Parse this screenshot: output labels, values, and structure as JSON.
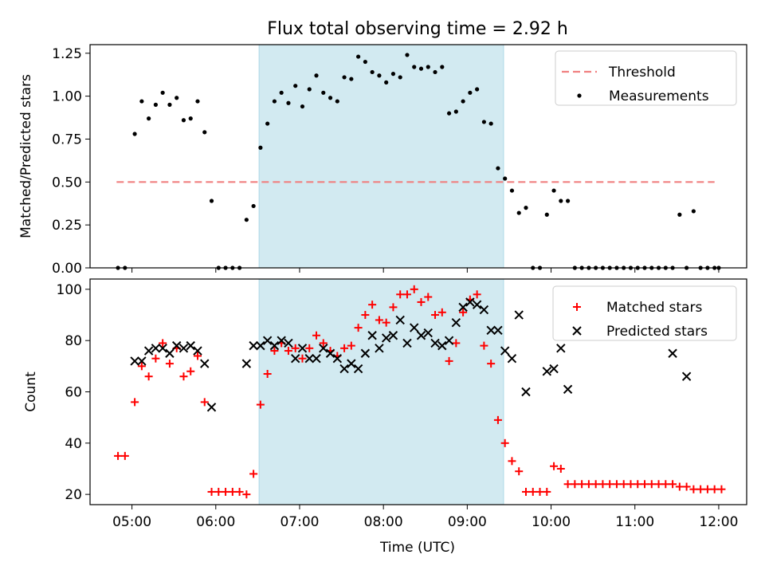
{
  "figure": {
    "title": "Flux total observing time = 2.92 h",
    "xlabel": "Time (UTC)",
    "xticks": [
      "05:00",
      "06:00",
      "07:00",
      "08:00",
      "09:00",
      "10:00",
      "11:00",
      "12:00"
    ],
    "observing_window": {
      "start": "06:31",
      "end": "09:26",
      "color": "#add8e6"
    }
  },
  "chart_data": [
    {
      "type": "scatter",
      "title": "Flux total observing time = 2.92 h",
      "xlabel": "",
      "ylabel": "Matched/Predicted stars",
      "xlim": [
        "04:30",
        "12:20"
      ],
      "ylim": [
        0,
        1.3
      ],
      "yticks": [
        "0.00",
        "0.25",
        "0.50",
        "0.75",
        "1.00",
        "1.25"
      ],
      "legend_position": "top-right",
      "series": [
        {
          "name": "Threshold",
          "kind": "line",
          "style": "dashed",
          "color": "#f08080",
          "points": [
            [
              "04:49",
              0.5
            ],
            [
              "11:57",
              0.5
            ]
          ]
        },
        {
          "name": "Measurements",
          "kind": "scatter",
          "marker": "dot",
          "color": "#000000",
          "points": [
            [
              "04:50",
              0.0
            ],
            [
              "04:55",
              0.0
            ],
            [
              "05:02",
              0.78
            ],
            [
              "05:07",
              0.97
            ],
            [
              "05:12",
              0.87
            ],
            [
              "05:17",
              0.95
            ],
            [
              "05:22",
              1.02
            ],
            [
              "05:27",
              0.95
            ],
            [
              "05:32",
              0.99
            ],
            [
              "05:37",
              0.86
            ],
            [
              "05:42",
              0.87
            ],
            [
              "05:47",
              0.97
            ],
            [
              "05:52",
              0.79
            ],
            [
              "05:57",
              0.39
            ],
            [
              "06:02",
              0.0
            ],
            [
              "06:07",
              0.0
            ],
            [
              "06:12",
              0.0
            ],
            [
              "06:17",
              0.0
            ],
            [
              "06:22",
              0.28
            ],
            [
              "06:27",
              0.36
            ],
            [
              "06:32",
              0.7
            ],
            [
              "06:37",
              0.84
            ],
            [
              "06:42",
              0.97
            ],
            [
              "06:47",
              1.02
            ],
            [
              "06:52",
              0.96
            ],
            [
              "06:57",
              1.06
            ],
            [
              "07:02",
              0.94
            ],
            [
              "07:07",
              1.04
            ],
            [
              "07:12",
              1.12
            ],
            [
              "07:17",
              1.02
            ],
            [
              "07:22",
              0.99
            ],
            [
              "07:27",
              0.97
            ],
            [
              "07:32",
              1.11
            ],
            [
              "07:37",
              1.1
            ],
            [
              "07:42",
              1.23
            ],
            [
              "07:47",
              1.2
            ],
            [
              "07:52",
              1.14
            ],
            [
              "07:57",
              1.12
            ],
            [
              "08:02",
              1.08
            ],
            [
              "08:07",
              1.13
            ],
            [
              "08:12",
              1.11
            ],
            [
              "08:17",
              1.24
            ],
            [
              "08:22",
              1.17
            ],
            [
              "08:27",
              1.16
            ],
            [
              "08:32",
              1.17
            ],
            [
              "08:37",
              1.14
            ],
            [
              "08:42",
              1.17
            ],
            [
              "08:47",
              0.9
            ],
            [
              "08:52",
              0.91
            ],
            [
              "08:57",
              0.97
            ],
            [
              "09:02",
              1.02
            ],
            [
              "09:07",
              1.04
            ],
            [
              "09:12",
              0.85
            ],
            [
              "09:17",
              0.84
            ],
            [
              "09:22",
              0.58
            ],
            [
              "09:27",
              0.52
            ],
            [
              "09:32",
              0.45
            ],
            [
              "09:37",
              0.32
            ],
            [
              "09:42",
              0.35
            ],
            [
              "09:47",
              0.0
            ],
            [
              "09:52",
              0.0
            ],
            [
              "09:57",
              0.31
            ],
            [
              "10:02",
              0.45
            ],
            [
              "10:07",
              0.39
            ],
            [
              "10:12",
              0.39
            ],
            [
              "10:17",
              0.0
            ],
            [
              "10:22",
              0.0
            ],
            [
              "10:27",
              0.0
            ],
            [
              "10:32",
              0.0
            ],
            [
              "10:37",
              0.0
            ],
            [
              "10:42",
              0.0
            ],
            [
              "10:47",
              0.0
            ],
            [
              "10:52",
              0.0
            ],
            [
              "10:57",
              0.0
            ],
            [
              "11:02",
              0.0
            ],
            [
              "11:07",
              0.0
            ],
            [
              "11:12",
              0.0
            ],
            [
              "11:17",
              0.0
            ],
            [
              "11:22",
              0.0
            ],
            [
              "11:27",
              0.0
            ],
            [
              "11:32",
              0.31
            ],
            [
              "11:37",
              0.0
            ],
            [
              "11:42",
              0.33
            ],
            [
              "11:47",
              0.0
            ],
            [
              "11:52",
              0.0
            ],
            [
              "11:57",
              0.0
            ],
            [
              "12:00",
              0.0
            ]
          ]
        }
      ]
    },
    {
      "type": "scatter",
      "title": "",
      "xlabel": "Time (UTC)",
      "ylabel": "Count",
      "xlim": [
        "04:30",
        "12:20"
      ],
      "ylim": [
        16,
        104
      ],
      "yticks": [
        "20",
        "40",
        "60",
        "80",
        "100"
      ],
      "legend_position": "top-right",
      "series": [
        {
          "name": "Matched stars",
          "marker": "plus",
          "color": "#ff0000",
          "points": [
            [
              "04:50",
              35
            ],
            [
              "04:55",
              35
            ],
            [
              "05:02",
              56
            ],
            [
              "05:07",
              70
            ],
            [
              "05:12",
              66
            ],
            [
              "05:17",
              73
            ],
            [
              "05:22",
              79
            ],
            [
              "05:27",
              71
            ],
            [
              "05:32",
              77
            ],
            [
              "05:37",
              66
            ],
            [
              "05:42",
              68
            ],
            [
              "05:47",
              74
            ],
            [
              "05:52",
              56
            ],
            [
              "05:57",
              21
            ],
            [
              "06:02",
              21
            ],
            [
              "06:07",
              21
            ],
            [
              "06:12",
              21
            ],
            [
              "06:17",
              21
            ],
            [
              "06:22",
              20
            ],
            [
              "06:27",
              28
            ],
            [
              "06:32",
              55
            ],
            [
              "06:37",
              67
            ],
            [
              "06:42",
              76
            ],
            [
              "06:47",
              79
            ],
            [
              "06:52",
              76
            ],
            [
              "06:57",
              77
            ],
            [
              "07:02",
              73
            ],
            [
              "07:07",
              77
            ],
            [
              "07:12",
              82
            ],
            [
              "07:17",
              79
            ],
            [
              "07:22",
              76
            ],
            [
              "07:27",
              74
            ],
            [
              "07:32",
              77
            ],
            [
              "07:37",
              78
            ],
            [
              "07:42",
              85
            ],
            [
              "07:47",
              90
            ],
            [
              "07:52",
              94
            ],
            [
              "07:57",
              88
            ],
            [
              "08:02",
              87
            ],
            [
              "08:07",
              93
            ],
            [
              "08:12",
              98
            ],
            [
              "08:17",
              98
            ],
            [
              "08:22",
              100
            ],
            [
              "08:27",
              95
            ],
            [
              "08:32",
              97
            ],
            [
              "08:37",
              90
            ],
            [
              "08:42",
              91
            ],
            [
              "08:47",
              72
            ],
            [
              "08:52",
              79
            ],
            [
              "08:57",
              91
            ],
            [
              "09:02",
              96
            ],
            [
              "09:07",
              98
            ],
            [
              "09:12",
              78
            ],
            [
              "09:17",
              71
            ],
            [
              "09:22",
              49
            ],
            [
              "09:27",
              40
            ],
            [
              "09:32",
              33
            ],
            [
              "09:37",
              29
            ],
            [
              "09:42",
              21
            ],
            [
              "09:47",
              21
            ],
            [
              "09:52",
              21
            ],
            [
              "09:57",
              21
            ],
            [
              "10:02",
              31
            ],
            [
              "10:07",
              30
            ],
            [
              "10:12",
              24
            ],
            [
              "10:17",
              24
            ],
            [
              "10:22",
              24
            ],
            [
              "10:27",
              24
            ],
            [
              "10:32",
              24
            ],
            [
              "10:37",
              24
            ],
            [
              "10:42",
              24
            ],
            [
              "10:47",
              24
            ],
            [
              "10:52",
              24
            ],
            [
              "10:57",
              24
            ],
            [
              "11:02",
              24
            ],
            [
              "11:07",
              24
            ],
            [
              "11:12",
              24
            ],
            [
              "11:17",
              24
            ],
            [
              "11:22",
              24
            ],
            [
              "11:27",
              24
            ],
            [
              "11:32",
              23
            ],
            [
              "11:37",
              23
            ],
            [
              "11:42",
              22
            ],
            [
              "11:47",
              22
            ],
            [
              "11:52",
              22
            ],
            [
              "11:57",
              22
            ],
            [
              "12:02",
              22
            ]
          ]
        },
        {
          "name": "Predicted stars",
          "marker": "cross",
          "color": "#000000",
          "points": [
            [
              "05:02",
              72
            ],
            [
              "05:07",
              72
            ],
            [
              "05:12",
              76
            ],
            [
              "05:17",
              77
            ],
            [
              "05:22",
              77
            ],
            [
              "05:27",
              75
            ],
            [
              "05:32",
              78
            ],
            [
              "05:37",
              77
            ],
            [
              "05:42",
              78
            ],
            [
              "05:47",
              76
            ],
            [
              "05:52",
              71
            ],
            [
              "05:57",
              54
            ],
            [
              "06:22",
              71
            ],
            [
              "06:27",
              78
            ],
            [
              "06:32",
              78
            ],
            [
              "06:37",
              80
            ],
            [
              "06:42",
              78
            ],
            [
              "06:47",
              80
            ],
            [
              "06:52",
              79
            ],
            [
              "06:57",
              73
            ],
            [
              "07:02",
              77
            ],
            [
              "07:07",
              73
            ],
            [
              "07:12",
              73
            ],
            [
              "07:17",
              77
            ],
            [
              "07:22",
              75
            ],
            [
              "07:27",
              73
            ],
            [
              "07:32",
              69
            ],
            [
              "07:37",
              71
            ],
            [
              "07:42",
              69
            ],
            [
              "07:47",
              75
            ],
            [
              "07:52",
              82
            ],
            [
              "07:57",
              77
            ],
            [
              "08:02",
              81
            ],
            [
              "08:07",
              82
            ],
            [
              "08:12",
              88
            ],
            [
              "08:17",
              79
            ],
            [
              "08:22",
              85
            ],
            [
              "08:27",
              82
            ],
            [
              "08:32",
              83
            ],
            [
              "08:37",
              79
            ],
            [
              "08:42",
              78
            ],
            [
              "08:47",
              80
            ],
            [
              "08:52",
              87
            ],
            [
              "08:57",
              93
            ],
            [
              "09:02",
              95
            ],
            [
              "09:07",
              94
            ],
            [
              "09:12",
              92
            ],
            [
              "09:17",
              84
            ],
            [
              "09:22",
              84
            ],
            [
              "09:27",
              76
            ],
            [
              "09:32",
              73
            ],
            [
              "09:37",
              90
            ],
            [
              "09:42",
              60
            ],
            [
              "09:57",
              68
            ],
            [
              "10:02",
              69
            ],
            [
              "10:07",
              77
            ],
            [
              "10:12",
              61
            ],
            [
              "11:27",
              75
            ],
            [
              "11:37",
              66
            ]
          ]
        }
      ]
    }
  ]
}
